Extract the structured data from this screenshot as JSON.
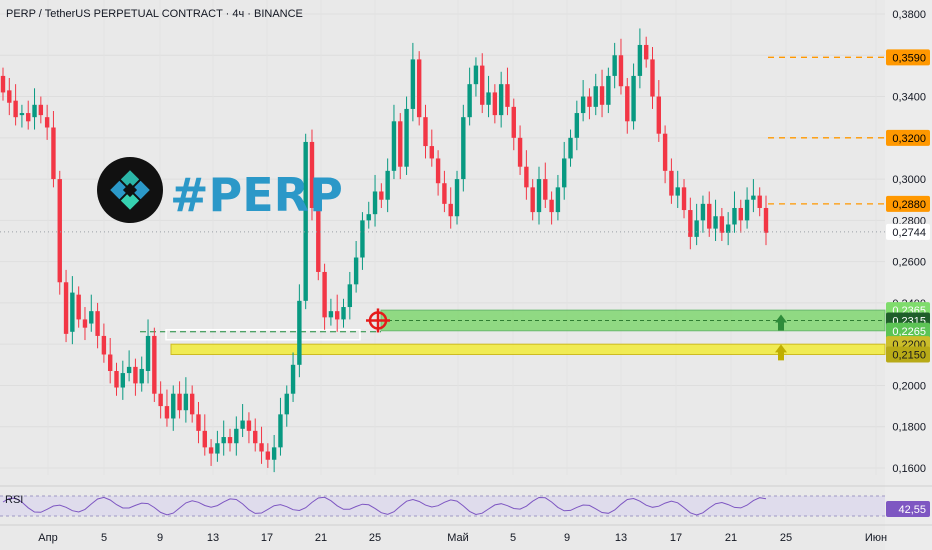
{
  "header": {
    "title": "PERP / TetherUS PERPETUAL CONTRACT · 4ч · BINANCE"
  },
  "logo": {
    "text": "#PERP",
    "icon": "perp-diamond-logo-icon"
  },
  "rsi": {
    "label": "RSI",
    "value": "42,55"
  },
  "colors": {
    "up": "#089981",
    "down": "#f23645",
    "orange": "#ff9800",
    "green_zone": "#7bd66a",
    "yellow_zone": "#f2ec3a",
    "rsi_line": "#7e57c2",
    "target": "#e51b1b"
  },
  "chart_data": {
    "type": "candlestick",
    "title": "PERP / TetherUS PERPETUAL CONTRACT · 4ч · BINANCE",
    "y_range": [
      0.15,
      0.38
    ],
    "y_ticks": [
      "0,3800",
      "0,3600",
      "0,3400",
      "0,3200",
      "0,3000",
      "0,2800",
      "0,2600",
      "0,2400",
      "0,2200",
      "0,2000",
      "0,1800",
      "0,1600"
    ],
    "x_ticks": [
      "Апр",
      "5",
      "9",
      "13",
      "17",
      "21",
      "25",
      "Май",
      "5",
      "9",
      "13",
      "17",
      "21",
      "25",
      "Июн"
    ],
    "last_price": "0,2744",
    "price_path": [
      [
        0.35,
        0.342
      ],
      [
        0.343,
        0.337
      ],
      [
        0.338,
        0.33
      ],
      [
        0.331,
        0.332
      ],
      [
        0.332,
        0.328
      ],
      [
        0.33,
        0.336
      ],
      [
        0.336,
        0.331
      ],
      [
        0.33,
        0.325
      ],
      [
        0.325,
        0.3
      ],
      [
        0.3,
        0.25
      ],
      [
        0.25,
        0.225
      ],
      [
        0.226,
        0.245
      ],
      [
        0.244,
        0.232
      ],
      [
        0.232,
        0.228
      ],
      [
        0.23,
        0.236
      ],
      [
        0.236,
        0.224
      ],
      [
        0.224,
        0.215
      ],
      [
        0.215,
        0.207
      ],
      [
        0.207,
        0.199
      ],
      [
        0.199,
        0.206
      ],
      [
        0.206,
        0.209
      ],
      [
        0.209,
        0.201
      ],
      [
        0.201,
        0.208
      ],
      [
        0.207,
        0.224
      ],
      [
        0.224,
        0.196
      ],
      [
        0.196,
        0.19
      ],
      [
        0.19,
        0.184
      ],
      [
        0.184,
        0.196
      ],
      [
        0.196,
        0.188
      ],
      [
        0.188,
        0.196
      ],
      [
        0.196,
        0.186
      ],
      [
        0.186,
        0.178
      ],
      [
        0.178,
        0.17
      ],
      [
        0.17,
        0.167
      ],
      [
        0.167,
        0.172
      ],
      [
        0.172,
        0.175
      ],
      [
        0.175,
        0.172
      ],
      [
        0.172,
        0.179
      ],
      [
        0.179,
        0.183
      ],
      [
        0.183,
        0.178
      ],
      [
        0.178,
        0.172
      ],
      [
        0.172,
        0.168
      ],
      [
        0.168,
        0.164
      ],
      [
        0.164,
        0.17
      ],
      [
        0.17,
        0.186
      ],
      [
        0.186,
        0.196
      ],
      [
        0.196,
        0.21
      ],
      [
        0.21,
        0.241
      ],
      [
        0.241,
        0.318
      ],
      [
        0.318,
        0.286
      ],
      [
        0.286,
        0.255
      ],
      [
        0.255,
        0.233
      ],
      [
        0.233,
        0.236
      ],
      [
        0.236,
        0.232
      ],
      [
        0.232,
        0.238
      ],
      [
        0.238,
        0.249
      ],
      [
        0.249,
        0.262
      ],
      [
        0.262,
        0.28
      ],
      [
        0.28,
        0.283
      ],
      [
        0.283,
        0.294
      ],
      [
        0.294,
        0.29
      ],
      [
        0.29,
        0.304
      ],
      [
        0.304,
        0.328
      ],
      [
        0.328,
        0.306
      ],
      [
        0.306,
        0.334
      ],
      [
        0.334,
        0.358
      ],
      [
        0.358,
        0.33
      ],
      [
        0.33,
        0.316
      ],
      [
        0.316,
        0.31
      ],
      [
        0.31,
        0.298
      ],
      [
        0.298,
        0.288
      ],
      [
        0.288,
        0.282
      ],
      [
        0.282,
        0.3
      ],
      [
        0.3,
        0.33
      ],
      [
        0.33,
        0.346
      ],
      [
        0.346,
        0.355
      ],
      [
        0.355,
        0.336
      ],
      [
        0.336,
        0.342
      ],
      [
        0.342,
        0.331
      ],
      [
        0.331,
        0.346
      ],
      [
        0.346,
        0.335
      ],
      [
        0.335,
        0.32
      ],
      [
        0.32,
        0.306
      ],
      [
        0.306,
        0.296
      ],
      [
        0.296,
        0.284
      ],
      [
        0.284,
        0.3
      ],
      [
        0.3,
        0.29
      ],
      [
        0.29,
        0.284
      ],
      [
        0.284,
        0.296
      ],
      [
        0.296,
        0.31
      ],
      [
        0.31,
        0.32
      ],
      [
        0.32,
        0.332
      ],
      [
        0.332,
        0.34
      ],
      [
        0.34,
        0.335
      ],
      [
        0.335,
        0.345
      ],
      [
        0.345,
        0.336
      ],
      [
        0.336,
        0.35
      ],
      [
        0.35,
        0.36
      ],
      [
        0.36,
        0.345
      ],
      [
        0.345,
        0.328
      ],
      [
        0.328,
        0.35
      ],
      [
        0.35,
        0.365
      ],
      [
        0.365,
        0.358
      ],
      [
        0.358,
        0.34
      ],
      [
        0.34,
        0.322
      ],
      [
        0.322,
        0.304
      ],
      [
        0.304,
        0.292
      ],
      [
        0.292,
        0.296
      ],
      [
        0.296,
        0.285
      ],
      [
        0.285,
        0.272
      ],
      [
        0.272,
        0.28
      ],
      [
        0.28,
        0.288
      ],
      [
        0.288,
        0.276
      ],
      [
        0.276,
        0.282
      ],
      [
        0.282,
        0.274
      ],
      [
        0.274,
        0.278
      ],
      [
        0.278,
        0.286
      ],
      [
        0.286,
        0.28
      ],
      [
        0.28,
        0.29
      ],
      [
        0.29,
        0.292
      ],
      [
        0.292,
        0.286
      ],
      [
        0.286,
        0.274
      ]
    ],
    "levels": [
      {
        "price": 0.359,
        "label": "0,3590",
        "style": "orange-dashed"
      },
      {
        "price": 0.32,
        "label": "0,3200",
        "style": "orange-dashed"
      },
      {
        "price": 0.288,
        "label": "0,2880",
        "style": "orange-dashed"
      }
    ],
    "zones": [
      {
        "name": "green-zone",
        "top": 0.2365,
        "mid": 0.2315,
        "bottom": 0.2265,
        "labels": [
          "0,2365",
          "0,2315",
          "0,2265"
        ]
      },
      {
        "name": "yellow-zone",
        "top": 0.22,
        "bottom": 0.215,
        "labels": [
          "0,2200",
          "0,2150"
        ]
      }
    ],
    "rsi_value": 42.55,
    "grid": true
  }
}
